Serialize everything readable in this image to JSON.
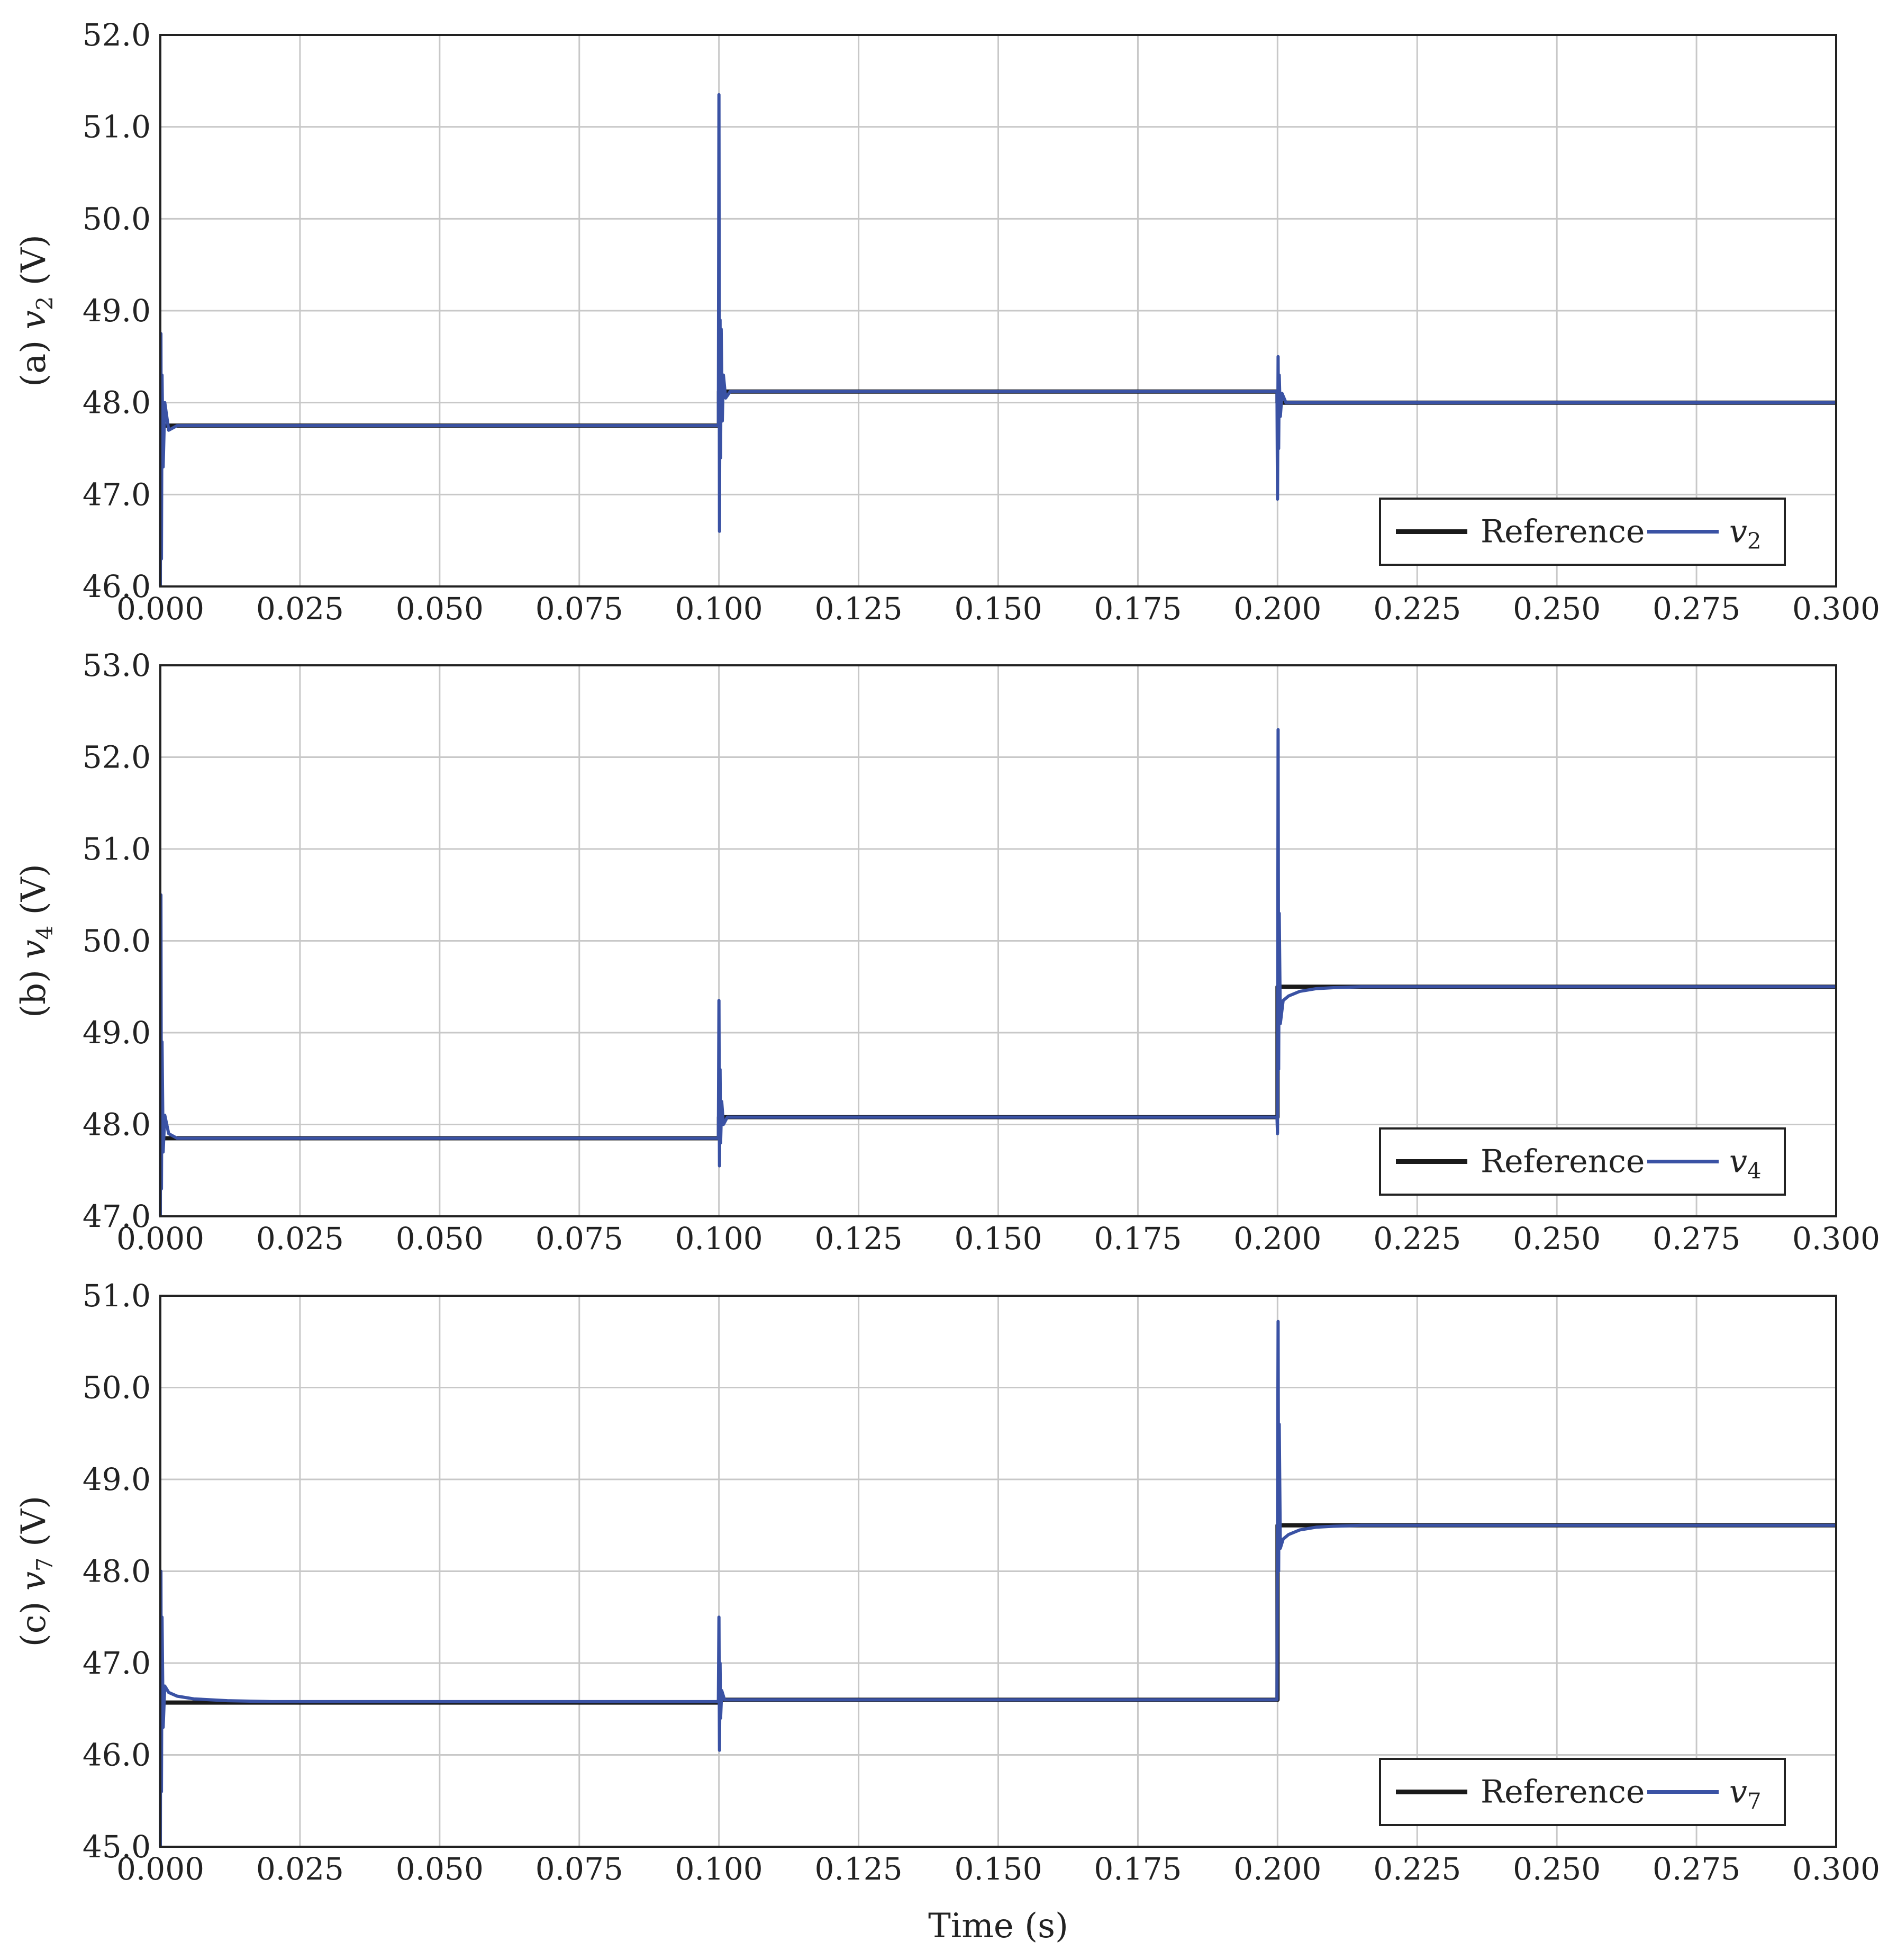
{
  "chart_data": [
    {
      "type": "line",
      "panel_label": "(a)",
      "ylabel_var": "v",
      "ylabel_sub": "2",
      "ylabel_unit": "(V)",
      "xlim": [
        0,
        0.3
      ],
      "ylim": [
        46,
        52
      ],
      "x_ticks": [
        "0.000",
        "0.025",
        "0.050",
        "0.075",
        "0.100",
        "0.125",
        "0.150",
        "0.175",
        "0.200",
        "0.225",
        "0.250",
        "0.275",
        "0.300"
      ],
      "y_ticks": [
        "46.0",
        "47.0",
        "48.0",
        "49.0",
        "50.0",
        "51.0",
        "52.0"
      ],
      "grid": true,
      "legend_position": "bottom-right",
      "series": [
        {
          "name": "Reference",
          "color": "#1a1a1a",
          "x": [
            0.0,
            0.1,
            0.1,
            0.2,
            0.2,
            0.3
          ],
          "y": [
            47.75,
            47.75,
            48.12,
            48.12,
            48.0,
            48.0
          ]
        },
        {
          "name": "v",
          "name_sub": "2",
          "color": "#3a52a4",
          "x": [
            0.0,
            0.0001,
            0.0002,
            0.0003,
            0.0005,
            0.0008,
            0.0015,
            0.003,
            0.0999,
            0.1,
            0.1001,
            0.1002,
            0.1003,
            0.1004,
            0.1006,
            0.1008,
            0.1012,
            0.102,
            0.1999,
            0.2,
            0.2001,
            0.2002,
            0.2003,
            0.2005,
            0.2008,
            0.2015,
            0.3
          ],
          "y": [
            46.0,
            48.75,
            46.3,
            48.3,
            47.3,
            48.0,
            47.7,
            47.75,
            47.75,
            51.35,
            46.6,
            48.9,
            47.4,
            48.8,
            47.8,
            48.3,
            48.05,
            48.12,
            48.12,
            46.95,
            48.5,
            47.5,
            48.3,
            47.85,
            48.1,
            48.0,
            48.0
          ]
        }
      ]
    },
    {
      "type": "line",
      "panel_label": "(b)",
      "ylabel_var": "v",
      "ylabel_sub": "4",
      "ylabel_unit": "(V)",
      "xlim": [
        0,
        0.3
      ],
      "ylim": [
        47,
        53
      ],
      "x_ticks": [
        "0.000",
        "0.025",
        "0.050",
        "0.075",
        "0.100",
        "0.125",
        "0.150",
        "0.175",
        "0.200",
        "0.225",
        "0.250",
        "0.275",
        "0.300"
      ],
      "y_ticks": [
        "47.0",
        "48.0",
        "49.0",
        "50.0",
        "51.0",
        "52.0",
        "53.0"
      ],
      "grid": true,
      "legend_position": "bottom-right",
      "series": [
        {
          "name": "Reference",
          "color": "#1a1a1a",
          "x": [
            0.0,
            0.1,
            0.1,
            0.2,
            0.2,
            0.3
          ],
          "y": [
            47.85,
            47.85,
            48.08,
            48.08,
            49.5,
            49.5
          ]
        },
        {
          "name": "v",
          "name_sub": "4",
          "color": "#3a52a4",
          "x": [
            0.0,
            0.0001,
            0.0002,
            0.0003,
            0.0005,
            0.0008,
            0.0015,
            0.003,
            0.0999,
            0.1,
            0.1001,
            0.1002,
            0.1003,
            0.1005,
            0.1008,
            0.1015,
            0.1999,
            0.2,
            0.2001,
            0.2002,
            0.2003,
            0.2005,
            0.201,
            0.202,
            0.204,
            0.207,
            0.21,
            0.215,
            0.3
          ],
          "y": [
            47.0,
            50.5,
            47.3,
            48.9,
            47.7,
            48.1,
            47.9,
            47.85,
            47.85,
            49.35,
            47.55,
            48.6,
            47.8,
            48.25,
            48.0,
            48.08,
            48.08,
            47.9,
            52.3,
            48.6,
            50.3,
            49.1,
            49.35,
            49.4,
            49.45,
            49.48,
            49.49,
            49.5,
            49.5
          ]
        }
      ]
    },
    {
      "type": "line",
      "panel_label": "(c)",
      "ylabel_var": "v",
      "ylabel_sub": "7",
      "ylabel_unit": "(V)",
      "xlim": [
        0,
        0.3
      ],
      "ylim": [
        45,
        51
      ],
      "x_ticks": [
        "0.000",
        "0.025",
        "0.050",
        "0.075",
        "0.100",
        "0.125",
        "0.150",
        "0.175",
        "0.200",
        "0.225",
        "0.250",
        "0.275",
        "0.300"
      ],
      "y_ticks": [
        "45.0",
        "46.0",
        "47.0",
        "48.0",
        "49.0",
        "50.0",
        "51.0"
      ],
      "grid": true,
      "legend_position": "bottom-right",
      "series": [
        {
          "name": "Reference",
          "color": "#1a1a1a",
          "x": [
            0.0,
            0.1,
            0.1,
            0.2,
            0.2,
            0.3
          ],
          "y": [
            46.57,
            46.57,
            46.6,
            46.6,
            48.5,
            48.5
          ]
        },
        {
          "name": "v",
          "name_sub": "7",
          "color": "#3a52a4",
          "x": [
            0.0,
            0.0001,
            0.0002,
            0.0003,
            0.0005,
            0.0008,
            0.0015,
            0.003,
            0.006,
            0.012,
            0.02,
            0.0999,
            0.1,
            0.1001,
            0.1002,
            0.1003,
            0.1005,
            0.101,
            0.1999,
            0.2,
            0.2001,
            0.2002,
            0.2003,
            0.2005,
            0.201,
            0.202,
            0.204,
            0.207,
            0.21,
            0.215,
            0.3
          ],
          "y": [
            45.0,
            48.0,
            45.6,
            47.5,
            46.3,
            46.75,
            46.68,
            46.64,
            46.61,
            46.59,
            46.58,
            46.58,
            47.5,
            46.05,
            47.0,
            46.4,
            46.7,
            46.6,
            46.6,
            48.6,
            50.72,
            48.0,
            49.6,
            48.25,
            48.35,
            48.4,
            48.45,
            48.48,
            48.49,
            48.5,
            48.5
          ]
        }
      ]
    }
  ],
  "shared_xlabel": "Time (s)"
}
